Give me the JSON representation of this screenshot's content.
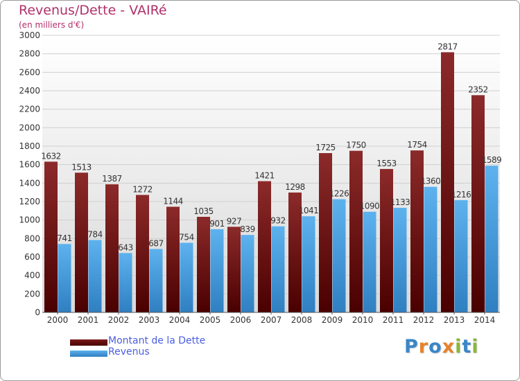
{
  "header": {
    "title": "Revenus/Dette - VAIRé",
    "subtitle": "(en milliers d'€)"
  },
  "legend": [
    {
      "label": "Montant de la Dette",
      "color": "#7a1a1a"
    },
    {
      "label": "Revenus",
      "color": "#4aa3e6"
    }
  ],
  "logo": {
    "text": "Proxiti",
    "letters": [
      {
        "ch": "P",
        "color": "#3a86c8"
      },
      {
        "ch": "r",
        "color": "#e8822a"
      },
      {
        "ch": "o",
        "color": "#3a86c8"
      },
      {
        "ch": "x",
        "color": "#e8822a"
      },
      {
        "ch": "i",
        "color": "#8ab73a"
      },
      {
        "ch": "t",
        "color": "#3a86c8"
      },
      {
        "ch": "i",
        "color": "#8ab73a"
      }
    ]
  },
  "chart_data": {
    "type": "bar",
    "title": "Revenus/Dette - VAIRé",
    "subtitle": "(en milliers d'€)",
    "categories": [
      "2000",
      "2001",
      "2002",
      "2003",
      "2004",
      "2005",
      "2006",
      "2007",
      "2008",
      "2009",
      "2010",
      "2011",
      "2012",
      "2013",
      "2014"
    ],
    "series": [
      {
        "name": "Montant de la Dette",
        "color": "#7a1a1a",
        "values": [
          1632,
          1513,
          1387,
          1272,
          1144,
          1035,
          927,
          1421,
          1298,
          1725,
          1750,
          1553,
          1754,
          2817,
          2352
        ]
      },
      {
        "name": "Revenus",
        "color": "#4aa3e6",
        "values": [
          741,
          784,
          643,
          687,
          754,
          901,
          839,
          932,
          1041,
          1226,
          1090,
          1133,
          1360,
          1216,
          1589
        ]
      }
    ],
    "ylim": [
      0,
      3000
    ],
    "yticks": [
      0,
      200,
      400,
      600,
      800,
      1000,
      1200,
      1400,
      1600,
      1800,
      2000,
      2200,
      2400,
      2600,
      2800,
      3000
    ],
    "grid": true,
    "legend_position": "bottom-left"
  }
}
